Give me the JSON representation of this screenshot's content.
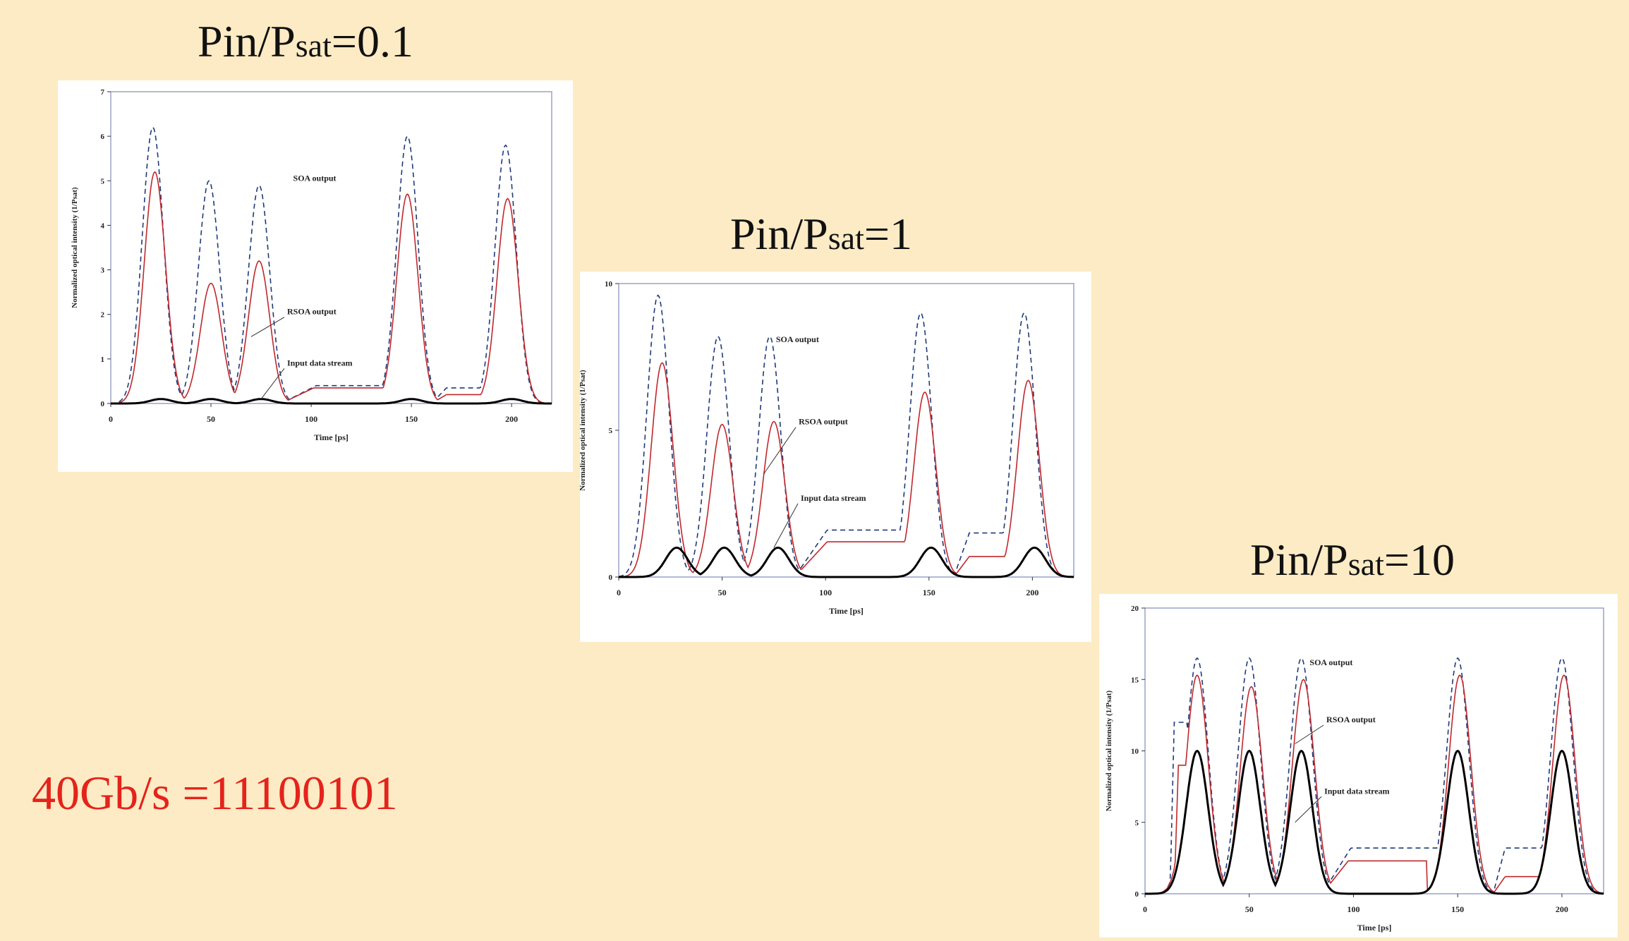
{
  "bitrate_label": "40Gb/s =11100101",
  "chart_data": [
    {
      "type": "line",
      "title": "Pin/Psat=0.1",
      "title_main": "Pin/P",
      "title_sub": "sat",
      "title_tail": "=0.1",
      "xlabel": "Time [ps]",
      "ylabel": "Normalized optical intensity (1/Psat)",
      "xlim": [
        0,
        220
      ],
      "ylim": [
        0,
        7
      ],
      "xticks": [
        0,
        50,
        100,
        150,
        200
      ],
      "yticks": [
        0,
        1,
        2,
        3,
        4,
        5,
        6,
        7
      ],
      "annotations": [
        {
          "text": "SOA output",
          "x": 91,
          "y": 5.0
        },
        {
          "text": "RSOA output",
          "x": 88,
          "y": 2.0,
          "arrow_to": [
            70,
            1.5
          ]
        },
        {
          "text": "Input data stream",
          "x": 88,
          "y": 0.85,
          "arrow_to": [
            75,
            0.1
          ]
        }
      ],
      "series": [
        {
          "name": "SOA output",
          "color": "#1f3a7a",
          "dash": true,
          "peaks": [
            [
              21,
              6.2
            ],
            [
              49,
              5.0
            ],
            [
              74,
              4.9
            ],
            [
              148,
              6.0
            ],
            [
              197,
              5.8
            ]
          ],
          "shoulders": [
            [
              85,
              155,
              0.4
            ],
            [
              160,
              190,
              0.35
            ]
          ]
        },
        {
          "name": "RSOA output",
          "color": "#c0282d",
          "dash": false,
          "peaks": [
            [
              22,
              5.2
            ],
            [
              50,
              2.7
            ],
            [
              74,
              3.2
            ],
            [
              148,
              4.7
            ],
            [
              198,
              4.6
            ]
          ],
          "shoulders": [
            [
              85,
              150,
              0.35
            ],
            [
              160,
              190,
              0.2
            ]
          ]
        },
        {
          "name": "Input data stream",
          "color": "#000000",
          "dash": false,
          "peaks": [
            [
              25,
              0.1
            ],
            [
              50,
              0.1
            ],
            [
              75,
              0.1
            ],
            [
              150,
              0.1
            ],
            [
              200,
              0.1
            ]
          ],
          "shoulders": []
        }
      ]
    },
    {
      "type": "line",
      "title": "Pin/Psat=1",
      "title_main": "Pin/P",
      "title_sub": "sat",
      "title_tail": "=1",
      "xlabel": "Time [ps]",
      "ylabel": "Normalized optical intensity (1/Psat)",
      "xlim": [
        0,
        220
      ],
      "ylim": [
        0,
        10
      ],
      "xticks": [
        0,
        50,
        100,
        150,
        200
      ],
      "yticks": [
        0,
        5,
        10
      ],
      "annotations": [
        {
          "text": "SOA output",
          "x": 76,
          "y": 8.0
        },
        {
          "text": "RSOA output",
          "x": 87,
          "y": 5.2,
          "arrow_to": [
            70,
            3.5
          ]
        },
        {
          "text": "Input data stream",
          "x": 88,
          "y": 2.6,
          "arrow_to": [
            75,
            1.0
          ]
        }
      ],
      "series": [
        {
          "name": "SOA output",
          "color": "#1f3a7a",
          "dash": true,
          "peaks": [
            [
              19,
              9.6
            ],
            [
              48,
              8.2
            ],
            [
              73,
              8.2
            ],
            [
              146,
              9.0
            ],
            [
              196,
              9.0
            ]
          ],
          "shoulders": [
            [
              85,
              148,
              1.6
            ],
            [
              162,
              192,
              1.5
            ]
          ]
        },
        {
          "name": "RSOA output",
          "color": "#c0282d",
          "dash": false,
          "peaks": [
            [
              21,
              7.3
            ],
            [
              50,
              5.2
            ],
            [
              75,
              5.3
            ],
            [
              148,
              6.3
            ],
            [
              198,
              6.7
            ]
          ],
          "shoulders": [
            [
              85,
              148,
              1.2
            ],
            [
              162,
              192,
              0.7
            ]
          ]
        },
        {
          "name": "Input data stream",
          "color": "#000000",
          "dash": false,
          "peaks": [
            [
              28,
              1.0
            ],
            [
              51,
              1.0
            ],
            [
              77,
              1.0
            ],
            [
              151,
              1.0
            ],
            [
              201,
              1.0
            ]
          ],
          "shoulders": []
        }
      ]
    },
    {
      "type": "line",
      "title": "Pin/Psat=10",
      "title_main": "Pin/P",
      "title_sub": "sat",
      "title_tail": "=10",
      "xlabel": "Time [ps]",
      "ylabel": "Normalized optical intensity (1/Psat)",
      "xlim": [
        0,
        220
      ],
      "ylim": [
        0,
        20
      ],
      "xticks": [
        0,
        50,
        100,
        150,
        200
      ],
      "yticks": [
        0,
        5,
        10,
        15,
        20
      ],
      "annotations": [
        {
          "text": "SOA output",
          "x": 79,
          "y": 16.0
        },
        {
          "text": "RSOA output",
          "x": 87,
          "y": 12.0,
          "arrow_to": [
            72,
            10.5
          ]
        },
        {
          "text": "Input data stream",
          "x": 86,
          "y": 7.0,
          "arrow_to": [
            72,
            5.0
          ]
        }
      ],
      "series": [
        {
          "name": "SOA output",
          "color": "#1f3a7a",
          "dash": true,
          "peaks": [
            [
              25,
              16.5
            ],
            [
              50,
              16.5
            ],
            [
              75,
              16.5
            ],
            [
              150,
              16.5
            ],
            [
              200,
              16.5
            ]
          ],
          "shoulders": [
            [
              12,
              20,
              12.0
            ],
            [
              85,
              140,
              3.2
            ],
            [
              167,
              190,
              3.2
            ]
          ]
        },
        {
          "name": "RSOA output",
          "color": "#c0282d",
          "dash": false,
          "peaks": [
            [
              25,
              15.3
            ],
            [
              51,
              14.5
            ],
            [
              76,
              15.0
            ],
            [
              151,
              15.3
            ],
            [
              201,
              15.3
            ]
          ],
          "shoulders": [
            [
              14,
              22,
              9.0
            ],
            [
              85,
              135,
              2.3
            ],
            [
              167,
              190,
              1.2
            ]
          ]
        },
        {
          "name": "Input data stream",
          "color": "#000000",
          "dash": false,
          "peaks": [
            [
              25,
              10.0
            ],
            [
              50,
              10.0
            ],
            [
              75,
              10.0
            ],
            [
              150,
              10.0
            ],
            [
              200,
              10.0
            ]
          ],
          "shoulders": []
        }
      ]
    }
  ]
}
